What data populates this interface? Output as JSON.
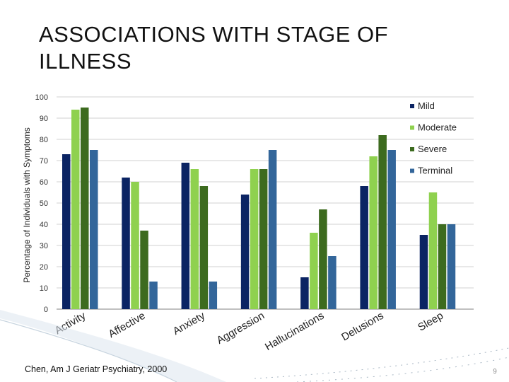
{
  "slide": {
    "title": "ASSOCIATIONS WITH STAGE OF ILLNESS",
    "footer": "Chen, Am J Geriatr Psychiatry, 2000",
    "page_number": "9"
  },
  "chart_data": {
    "type": "bar",
    "title": "",
    "ylabel": "Percentage of Individuals with Symptoms",
    "xlabel": "",
    "ylim": [
      0,
      100
    ],
    "yticks": [
      0,
      10,
      20,
      30,
      40,
      50,
      60,
      70,
      80,
      90,
      100
    ],
    "grid": true,
    "legend_position": "right",
    "categories": [
      "Activity",
      "Affective",
      "Anxiety",
      "Aggression",
      "Hallucinations",
      "Delusions",
      "Sleep"
    ],
    "series": [
      {
        "name": "Mild",
        "color": "#0b2463",
        "values": [
          73,
          62,
          69,
          54,
          15,
          58,
          35
        ]
      },
      {
        "name": "Moderate",
        "color": "#8fd14f",
        "values": [
          94,
          60,
          66,
          66,
          36,
          72,
          55
        ]
      },
      {
        "name": "Severe",
        "color": "#3d6b1f",
        "values": [
          95,
          37,
          58,
          66,
          47,
          82,
          40
        ]
      },
      {
        "name": "Terminal",
        "color": "#33669a",
        "values": [
          75,
          13,
          13,
          75,
          25,
          75,
          40
        ]
      }
    ]
  }
}
